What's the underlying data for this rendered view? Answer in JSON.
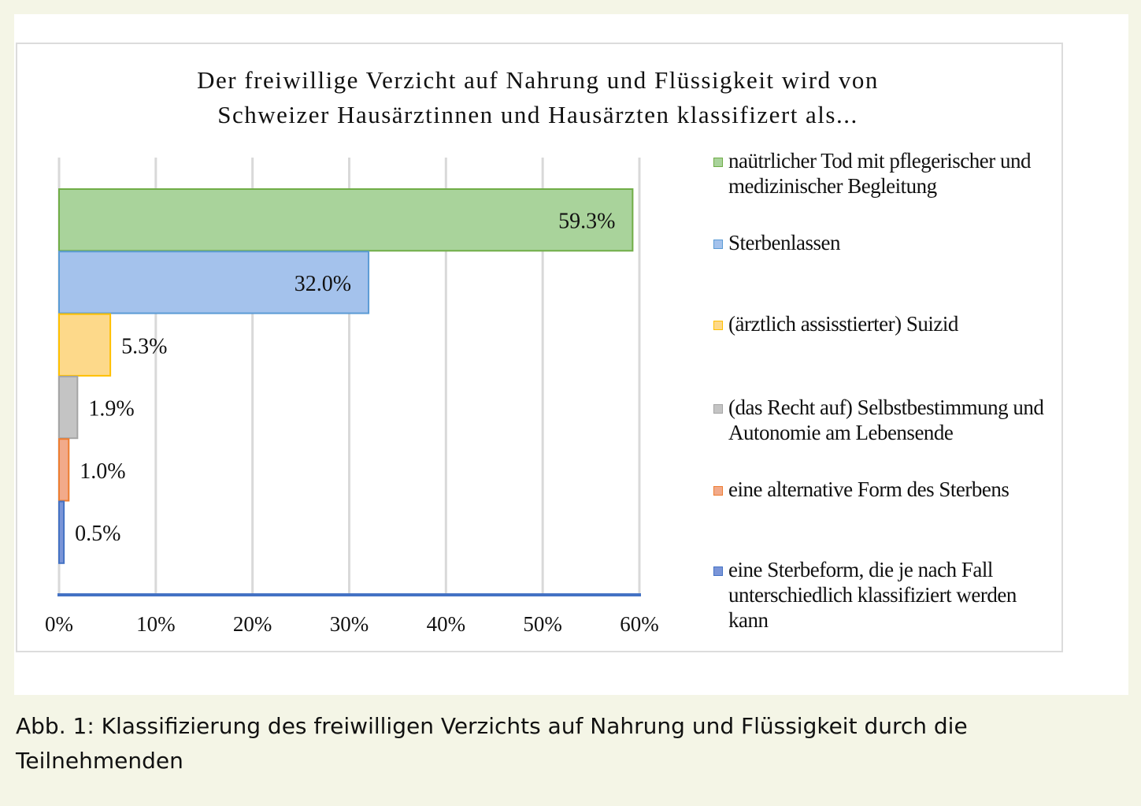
{
  "chart_data": {
    "type": "bar",
    "orientation": "horizontal",
    "title": "Der freiwillige Verzicht auf Nahrung und Flüssigkeit wird von Schweizer Hausärztinnen und Hausärzten klassifizert als...",
    "title_lines": [
      "Der freiwillige Verzicht auf Nahrung und Flüssigkeit wird von",
      "Schweizer Hausärztinnen und Hausärzten klassifizert als..."
    ],
    "categories": [
      "naütrlicher Tod mit pflegerischer und medizinischer Begleitung",
      "Sterbenlassen",
      "(ärztlich assisstierter) Suizid",
      "(das Recht auf) Selbstbestimmung und Autonomie am Lebensende",
      "eine alternative Form des Sterbens",
      "eine Sterbeform, die je nach Fall unterschiedlich klassifiziert werden kann"
    ],
    "values": [
      59.3,
      32.0,
      5.3,
      1.9,
      1.0,
      0.5
    ],
    "data_labels": [
      "59.3%",
      "32.0%",
      "5.3%",
      "1.9%",
      "1.0%",
      "0.5%"
    ],
    "colors": [
      "#a9d39b",
      "#a4c2ec",
      "#fdd98a",
      "#c4c4c4",
      "#f2aa8a",
      "#7a95d8"
    ],
    "border_colors": [
      "#70ad47",
      "#5b9bd5",
      "#ffc000",
      "#a5a5a5",
      "#ed7d31",
      "#4472c4"
    ],
    "xlim": [
      0,
      60
    ],
    "x_ticks": [
      "0%",
      "10%",
      "20%",
      "30%",
      "40%",
      "50%",
      "60%"
    ],
    "x_tick_values": [
      0,
      10,
      20,
      30,
      40,
      50,
      60
    ],
    "grid": true,
    "legend_position": "right"
  },
  "caption": "Abb. 1: Klassifizierung des freiwilligen Verzichts auf Nahrung und Flüssigkeit durch die Teilnehmenden"
}
